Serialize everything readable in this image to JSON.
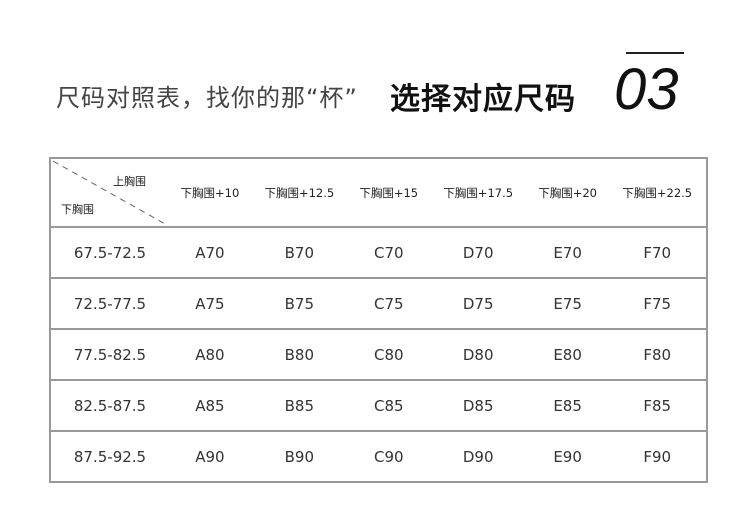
{
  "header": {
    "subtitle": "尺码对照表，找你的那“杯”",
    "title": "选择对应尺码",
    "number": "03"
  },
  "table": {
    "corner": {
      "top": "上胸围",
      "bottom": "下胸围"
    },
    "columns": [
      "下胸围+10",
      "下胸围+12.5",
      "下胸围+15",
      "下胸围+17.5",
      "下胸围+20",
      "下胸围+22.5"
    ],
    "rows": [
      {
        "label": "67.5-72.5",
        "cells": [
          "A70",
          "B70",
          "C70",
          "D70",
          "E70",
          "F70"
        ]
      },
      {
        "label": "72.5-77.5",
        "cells": [
          "A75",
          "B75",
          "C75",
          "D75",
          "E75",
          "F75"
        ]
      },
      {
        "label": "77.5-82.5",
        "cells": [
          "A80",
          "B80",
          "C80",
          "D80",
          "E80",
          "F80"
        ]
      },
      {
        "label": "82.5-87.5",
        "cells": [
          "A85",
          "B85",
          "C85",
          "D85",
          "E85",
          "F85"
        ]
      },
      {
        "label": "87.5-92.5",
        "cells": [
          "A90",
          "B90",
          "C90",
          "D90",
          "E90",
          "F90"
        ]
      }
    ]
  }
}
